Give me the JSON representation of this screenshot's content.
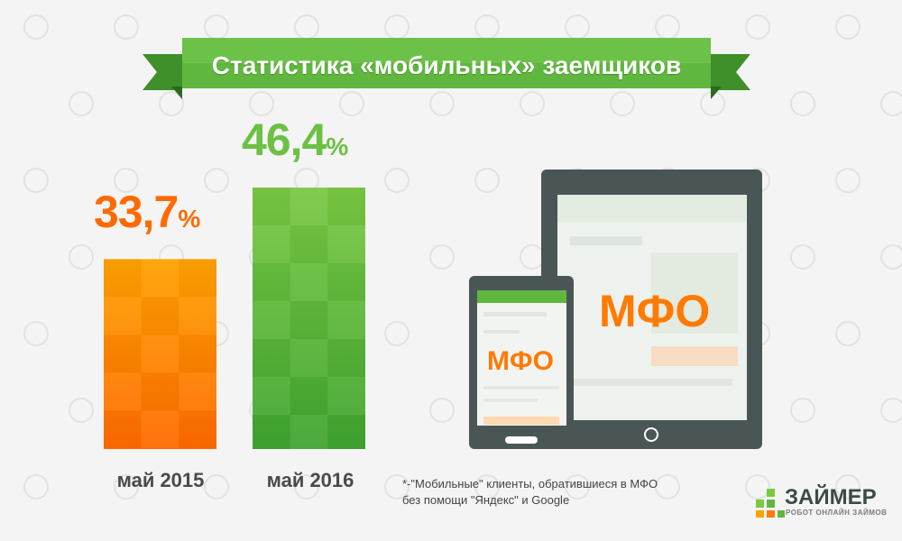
{
  "title": "Статистика «мобильных» заемщиков",
  "colors": {
    "orange_top": "#ffa200",
    "orange_bottom": "#ff6a00",
    "green_top": "#7ac943",
    "green_bottom": "#3fa530",
    "ribbon": "#5fb83d",
    "device_frame": "#4a5655",
    "accent_orange": "#ff7a00"
  },
  "chart_data": {
    "type": "bar",
    "title": "Статистика «мобильных» заемщиков",
    "categories": [
      "май 2015",
      "май 2016"
    ],
    "values": [
      33.7,
      46.4
    ],
    "value_labels": [
      "33,7",
      "46,4"
    ],
    "unit": "%",
    "xlabel": "",
    "ylabel": "",
    "grid": false
  },
  "devices": {
    "phone_label": "МФО",
    "tablet_label": "МФО"
  },
  "footnote": {
    "line1": "*-\"Мобильные\" клиенты, обратившиеся в МФО",
    "line2": "без помощи \"Яндекс\" и Google"
  },
  "logo": {
    "name": "ЗАЙМЕР",
    "tagline": "РОБОТ ОНЛАЙН ЗАЙМОВ"
  }
}
